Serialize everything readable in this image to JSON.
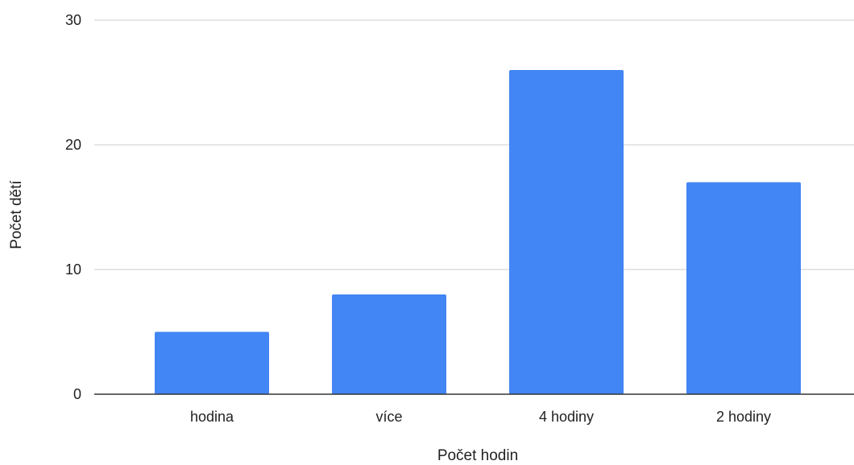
{
  "chart_data": {
    "type": "bar",
    "title": "",
    "xlabel": "Počet hodin",
    "ylabel": "Počet dětí",
    "categories": [
      "hodina",
      "více",
      "4 hodiny",
      "2 hodiny"
    ],
    "values": [
      5,
      8,
      26,
      17
    ],
    "ylim": [
      0,
      30
    ],
    "yticks": [
      "0",
      "10",
      "20",
      "30"
    ],
    "grid": true,
    "bar_color": "#4285f4",
    "legend": "none"
  }
}
